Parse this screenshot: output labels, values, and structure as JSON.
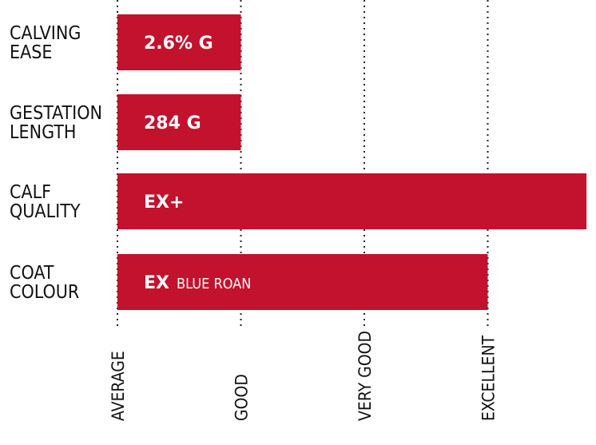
{
  "colors": {
    "bar": "#c2122d",
    "text": "#111111",
    "bar_text": "#ffffff",
    "gridline": "#222222"
  },
  "chart_data": {
    "type": "bar",
    "orientation": "horizontal",
    "xaxis": {
      "ticks": [
        "AVERAGE",
        "GOOD",
        "VERY GOOD",
        "EXCELLENT"
      ],
      "tick_values": [
        0,
        1,
        2,
        3
      ],
      "range": [
        0,
        3.8
      ],
      "gridlines": "dotted vertical"
    },
    "rows": [
      {
        "label_lines": [
          "CALVING",
          "EASE"
        ],
        "value": 1.0,
        "bar_text": "2.6% G",
        "bar_text_extra": ""
      },
      {
        "label_lines": [
          "GESTATION",
          "LENGTH"
        ],
        "value": 1.0,
        "bar_text": "284 G",
        "bar_text_extra": ""
      },
      {
        "label_lines": [
          "CALF",
          "QUALITY"
        ],
        "value": 3.8,
        "bar_text": "EX+",
        "bar_text_extra": ""
      },
      {
        "label_lines": [
          "COAT",
          "COLOUR"
        ],
        "value": 3.0,
        "bar_text": "EX",
        "bar_text_extra": "BLUE ROAN"
      }
    ]
  }
}
